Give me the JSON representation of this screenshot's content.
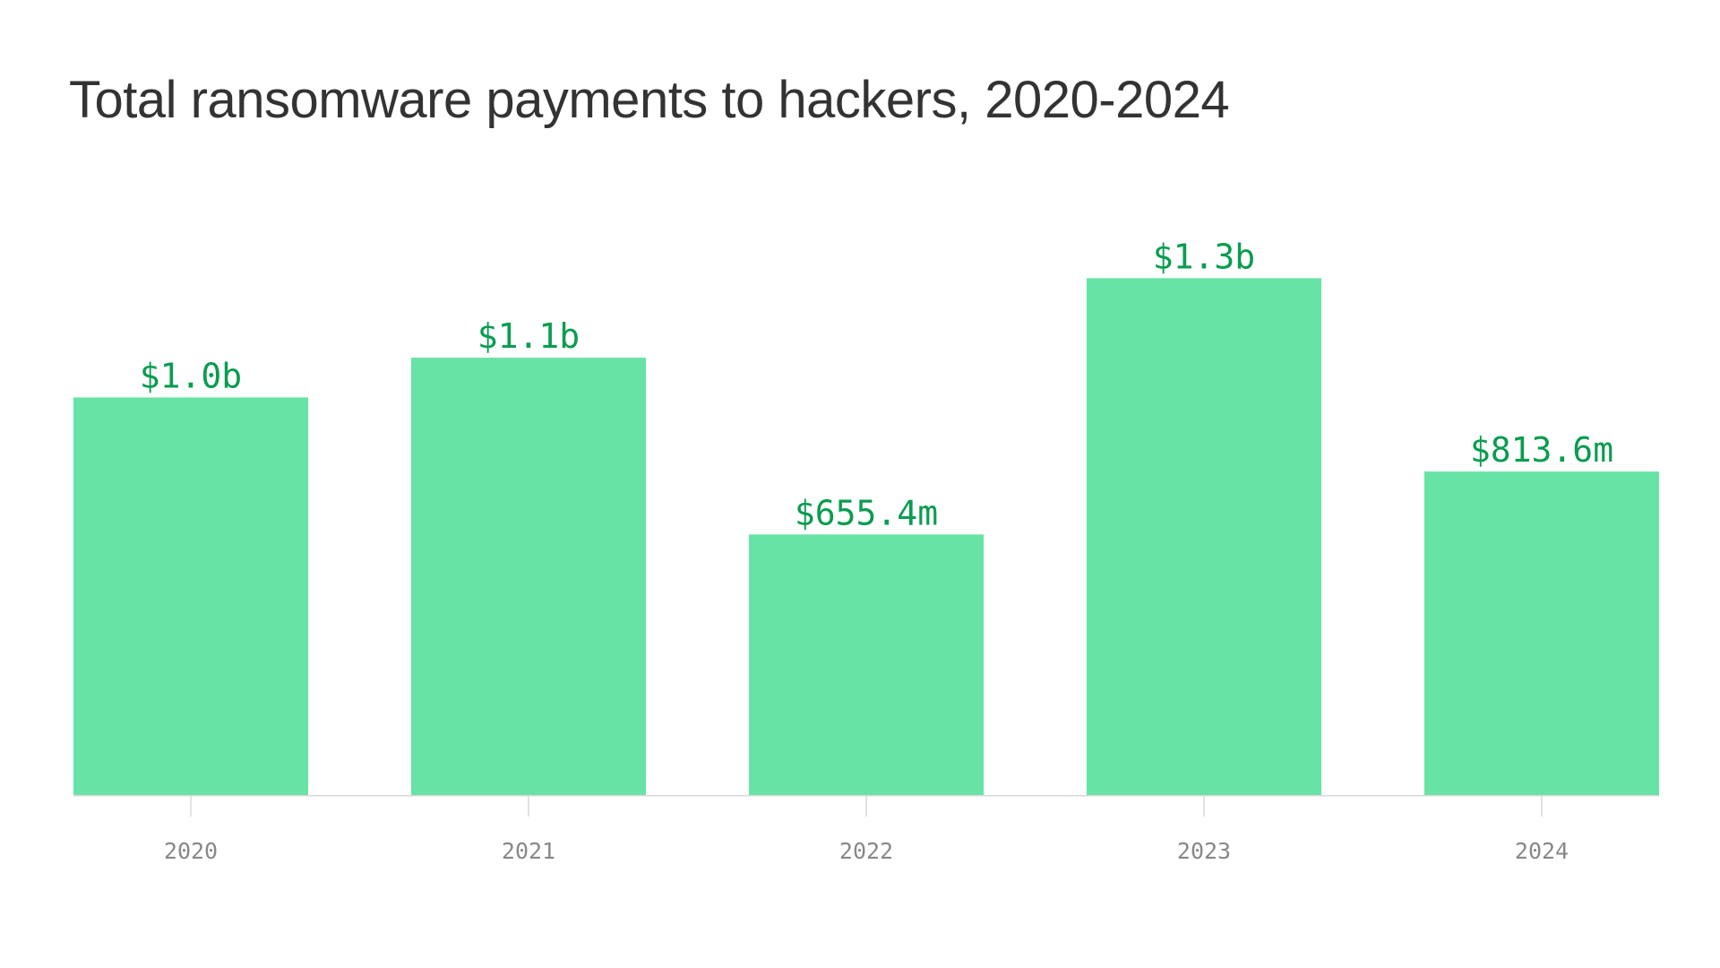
{
  "colors": {
    "bar": "#67e3a5",
    "value_label": "#0a9c50",
    "title": "#333333",
    "tick_label": "#888888",
    "axis": "#d9d9d9"
  },
  "chart_data": {
    "type": "bar",
    "title": "Total ransomware payments to hackers, 2020-2024",
    "xlabel": "",
    "ylabel": "",
    "unit": "USD millions",
    "categories": [
      "2020",
      "2021",
      "2022",
      "2023",
      "2024"
    ],
    "values": [
      1000,
      1100,
      655.4,
      1300,
      813.6
    ],
    "data_labels": [
      "$1.0b",
      "$1.1b",
      "$655.4m",
      "$1.3b",
      "$813.6m"
    ],
    "ylim": [
      0,
      1400
    ],
    "grid": false,
    "legend": "none"
  }
}
